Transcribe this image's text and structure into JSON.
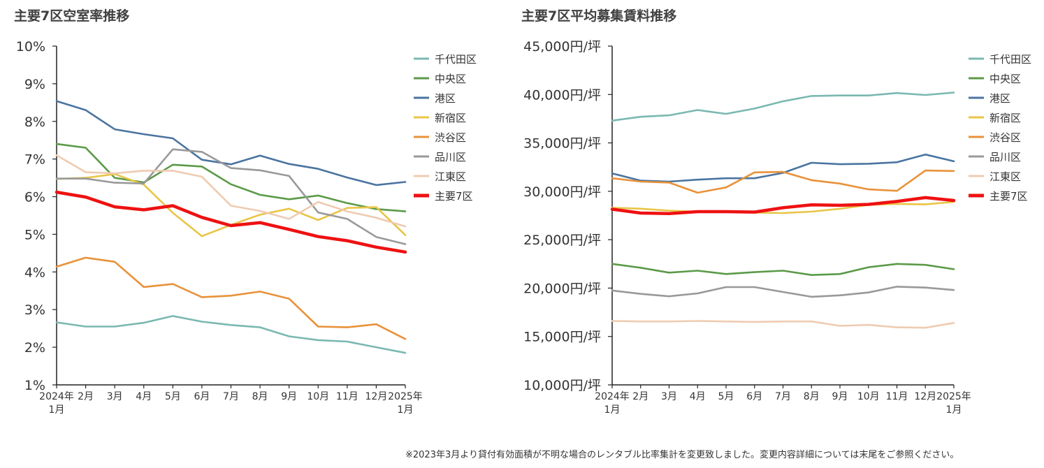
{
  "footnote": "※2023年3月より貸付有効面積が不明な場合のレンタブル比率集計を変更致しました。変更内容詳細については末尾をご参照ください。",
  "chart_data": [
    {
      "type": "line",
      "title": "主要7区空室率推移",
      "categories": [
        "2024年1月",
        "2月",
        "3月",
        "4月",
        "5月",
        "6月",
        "7月",
        "8月",
        "9月",
        "10月",
        "11月",
        "12月",
        "2025年1月"
      ],
      "category_labels": [
        [
          "2024年",
          "1月"
        ],
        [
          "2月"
        ],
        [
          "3月"
        ],
        [
          "4月"
        ],
        [
          "5月"
        ],
        [
          "6月"
        ],
        [
          "7月"
        ],
        [
          "8月"
        ],
        [
          "9月"
        ],
        [
          "10月"
        ],
        [
          "11月"
        ],
        [
          "12月"
        ],
        [
          "2025年",
          "1月"
        ]
      ],
      "ylim": [
        1,
        10
      ],
      "ytick_labels": [
        "1%",
        "2%",
        "3%",
        "4%",
        "5%",
        "6%",
        "7%",
        "8%",
        "9%",
        "10%"
      ],
      "legend_position": "right",
      "series": [
        {
          "name": "千代田区",
          "color": "#7AB8B1",
          "values": [
            2.66,
            2.55,
            2.55,
            2.65,
            2.83,
            2.68,
            2.59,
            2.53,
            2.29,
            2.19,
            2.15,
            2.0,
            1.85
          ]
        },
        {
          "name": "中央区",
          "color": "#5B9A48",
          "values": [
            7.4,
            7.3,
            6.5,
            6.38,
            6.85,
            6.8,
            6.33,
            6.05,
            5.93,
            6.03,
            5.83,
            5.67,
            5.61
          ]
        },
        {
          "name": "港区",
          "color": "#4A74A0",
          "values": [
            8.54,
            8.3,
            7.79,
            7.66,
            7.55,
            6.98,
            6.86,
            7.09,
            6.87,
            6.74,
            6.51,
            6.31,
            6.39
          ]
        },
        {
          "name": "新宿区",
          "color": "#E8C547",
          "values": [
            6.47,
            6.5,
            6.6,
            6.32,
            5.57,
            4.95,
            5.25,
            5.52,
            5.68,
            5.38,
            5.7,
            5.72,
            4.98
          ]
        },
        {
          "name": "渋谷区",
          "color": "#E8923A",
          "values": [
            4.14,
            4.38,
            4.27,
            3.6,
            3.68,
            3.33,
            3.37,
            3.48,
            3.29,
            2.55,
            2.53,
            2.61,
            2.22
          ]
        },
        {
          "name": "品川区",
          "color": "#999999",
          "values": [
            6.48,
            6.48,
            6.37,
            6.35,
            7.26,
            7.19,
            6.76,
            6.7,
            6.55,
            5.58,
            5.41,
            4.93,
            4.74
          ]
        },
        {
          "name": "江東区",
          "color": "#EFCBB1",
          "values": [
            7.1,
            6.65,
            6.62,
            6.69,
            6.69,
            6.53,
            5.76,
            5.62,
            5.41,
            5.86,
            5.61,
            5.44,
            5.21
          ]
        },
        {
          "name": "主要7区",
          "color": "#EE1111",
          "values": [
            6.12,
            5.99,
            5.73,
            5.65,
            5.76,
            5.45,
            5.23,
            5.31,
            5.13,
            4.94,
            4.83,
            4.66,
            4.53
          ]
        }
      ]
    },
    {
      "type": "line",
      "title": "主要7区平均募集賃料推移",
      "categories": [
        "2024年1月",
        "2月",
        "3月",
        "4月",
        "5月",
        "6月",
        "7月",
        "8月",
        "9月",
        "10月",
        "11月",
        "12月",
        "2025年1月"
      ],
      "category_labels": [
        [
          "2024年",
          "1月"
        ],
        [
          "2月"
        ],
        [
          "3月"
        ],
        [
          "4月"
        ],
        [
          "5月"
        ],
        [
          "6月"
        ],
        [
          "7月"
        ],
        [
          "8月"
        ],
        [
          "9月"
        ],
        [
          "10月"
        ],
        [
          "11月"
        ],
        [
          "12月"
        ],
        [
          "2025年",
          "1月"
        ]
      ],
      "ylim": [
        10000,
        45000
      ],
      "ytick_labels": [
        "10,000円/坪",
        "15,000円/坪",
        "20,000円/坪",
        "25,000円/坪",
        "30,000円/坪",
        "35,000円/坪",
        "40,000円/坪",
        "45,000円/坪"
      ],
      "legend_position": "right",
      "series": [
        {
          "name": "千代田区",
          "color": "#7AB8B1",
          "values": [
            37300,
            37700,
            37850,
            38400,
            38000,
            38550,
            39300,
            39850,
            39900,
            39900,
            40150,
            39950,
            40200
          ]
        },
        {
          "name": "中央区",
          "color": "#5B9A48",
          "values": [
            22500,
            22100,
            21600,
            21800,
            21450,
            21650,
            21800,
            21350,
            21450,
            22150,
            22500,
            22400,
            21950
          ]
        },
        {
          "name": "港区",
          "color": "#4A74A0",
          "values": [
            31850,
            31100,
            31000,
            31200,
            31350,
            31350,
            31900,
            32950,
            32800,
            32850,
            33000,
            33800,
            33100
          ]
        },
        {
          "name": "新宿区",
          "color": "#E8C547",
          "values": [
            28300,
            28200,
            28000,
            27900,
            27850,
            27800,
            27750,
            27900,
            28200,
            28600,
            28700,
            28650,
            28900
          ]
        },
        {
          "name": "渋谷区",
          "color": "#E8923A",
          "values": [
            31350,
            31000,
            30900,
            29850,
            30400,
            31950,
            32000,
            31150,
            30800,
            30200,
            30050,
            32150,
            32100
          ]
        },
        {
          "name": "品川区",
          "color": "#999999",
          "values": [
            19750,
            19400,
            19150,
            19450,
            20100,
            20100,
            19600,
            19100,
            19250,
            19550,
            20150,
            20050,
            19800
          ]
        },
        {
          "name": "江東区",
          "color": "#EFCBB1",
          "values": [
            16600,
            16550,
            16550,
            16600,
            16550,
            16500,
            16550,
            16550,
            16100,
            16200,
            15950,
            15900,
            16400
          ]
        },
        {
          "name": "主要7区",
          "color": "#EE1111",
          "values": [
            28150,
            27750,
            27700,
            27900,
            27900,
            27850,
            28300,
            28600,
            28550,
            28650,
            28950,
            29350,
            29050
          ]
        }
      ]
    }
  ]
}
